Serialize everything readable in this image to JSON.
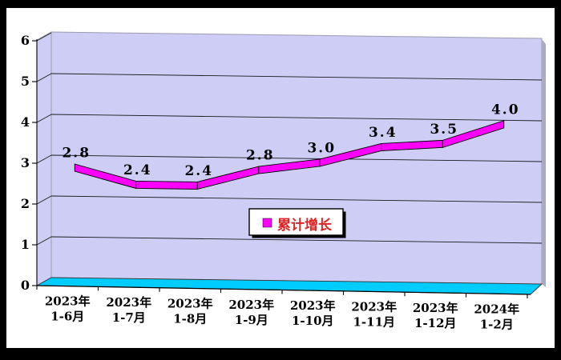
{
  "chart_data": {
    "type": "line",
    "style": "3d-ribbon",
    "title": "",
    "categories": [
      [
        "2023年",
        "1-6月"
      ],
      [
        "2023年",
        "1-7月"
      ],
      [
        "2023年",
        "1-8月"
      ],
      [
        "2023年",
        "1-9月"
      ],
      [
        "2023年",
        "1-10月"
      ],
      [
        "2023年",
        "1-11月"
      ],
      [
        "2023年",
        "1-12月"
      ],
      [
        "2024年",
        "1-2月"
      ]
    ],
    "series": [
      {
        "name": "累计增长",
        "values": [
          2.8,
          2.4,
          2.4,
          2.8,
          3.0,
          3.4,
          3.5,
          4.0
        ],
        "labels": [
          "2.8",
          "2.4",
          "2.4",
          "2.8",
          "3.0",
          "3.4",
          "3.5",
          "4.0"
        ]
      }
    ],
    "xlabel": "",
    "ylabel": "",
    "ylim": [
      0,
      6
    ],
    "yticks": [
      0,
      1,
      2,
      3,
      4,
      5,
      6
    ],
    "grid": true,
    "legend": {
      "label": "累计增长",
      "position": "inside-bottom-center"
    },
    "colors": {
      "line": "#FF00FF",
      "wall": "#CDCDF6",
      "wall_edge": "#9A9AB0",
      "wall_side": "#AAAAC0",
      "floor": "#00CCFF",
      "grid": "#1A1A1A",
      "axis": "#000000",
      "text": "#000000",
      "legend_text": "#D92525",
      "frame": "#000000",
      "background": "#FFFFFF"
    }
  }
}
